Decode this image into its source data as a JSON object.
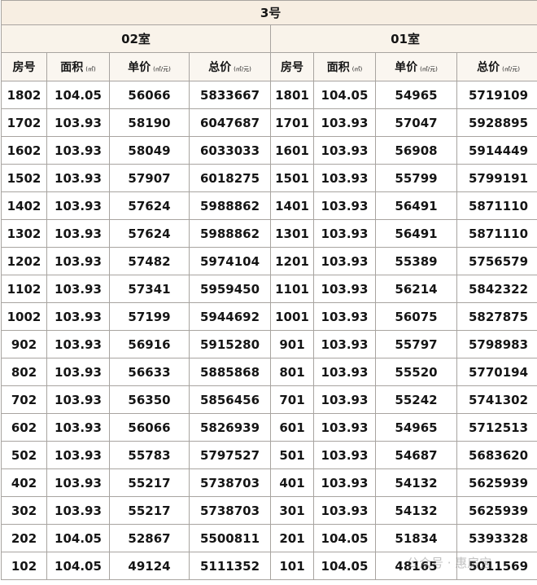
{
  "title": "3号",
  "groups": [
    "02室",
    "01室"
  ],
  "headers": [
    {
      "label": "房号",
      "unit": ""
    },
    {
      "label": "面积",
      "unit": "(㎡)"
    },
    {
      "label": "单价",
      "unit": "(㎡/元)"
    },
    {
      "label": "总价",
      "unit": "(㎡/元)"
    }
  ],
  "rows": [
    [
      "1802",
      "104.05",
      "56066",
      "5833667",
      "1801",
      "104.05",
      "54965",
      "5719109"
    ],
    [
      "1702",
      "103.93",
      "58190",
      "6047687",
      "1701",
      "103.93",
      "57047",
      "5928895"
    ],
    [
      "1602",
      "103.93",
      "58049",
      "6033033",
      "1601",
      "103.93",
      "56908",
      "5914449"
    ],
    [
      "1502",
      "103.93",
      "57907",
      "6018275",
      "1501",
      "103.93",
      "55799",
      "5799191"
    ],
    [
      "1402",
      "103.93",
      "57624",
      "5988862",
      "1401",
      "103.93",
      "56491",
      "5871110"
    ],
    [
      "1302",
      "103.93",
      "57624",
      "5988862",
      "1301",
      "103.93",
      "56491",
      "5871110"
    ],
    [
      "1202",
      "103.93",
      "57482",
      "5974104",
      "1201",
      "103.93",
      "55389",
      "5756579"
    ],
    [
      "1102",
      "103.93",
      "57341",
      "5959450",
      "1101",
      "103.93",
      "56214",
      "5842322"
    ],
    [
      "1002",
      "103.93",
      "57199",
      "5944692",
      "1001",
      "103.93",
      "56075",
      "5827875"
    ],
    [
      "902",
      "103.93",
      "56916",
      "5915280",
      "901",
      "103.93",
      "55797",
      "5798983"
    ],
    [
      "802",
      "103.93",
      "56633",
      "5885868",
      "801",
      "103.93",
      "55520",
      "5770194"
    ],
    [
      "702",
      "103.93",
      "56350",
      "5856456",
      "701",
      "103.93",
      "55242",
      "5741302"
    ],
    [
      "602",
      "103.93",
      "56066",
      "5826939",
      "601",
      "103.93",
      "54965",
      "5712513"
    ],
    [
      "502",
      "103.93",
      "55783",
      "5797527",
      "501",
      "103.93",
      "54687",
      "5683620"
    ],
    [
      "402",
      "103.93",
      "55217",
      "5738703",
      "401",
      "103.93",
      "54132",
      "5625939"
    ],
    [
      "302",
      "103.93",
      "55217",
      "5738703",
      "301",
      "103.93",
      "54132",
      "5625939"
    ],
    [
      "202",
      "104.05",
      "52867",
      "5500811",
      "201",
      "104.05",
      "51834",
      "5393328"
    ],
    [
      "102",
      "104.05",
      "49124",
      "5111352",
      "101",
      "104.05",
      "48165",
      "5011569"
    ]
  ],
  "watermark": "公众号 · 惠房宝"
}
